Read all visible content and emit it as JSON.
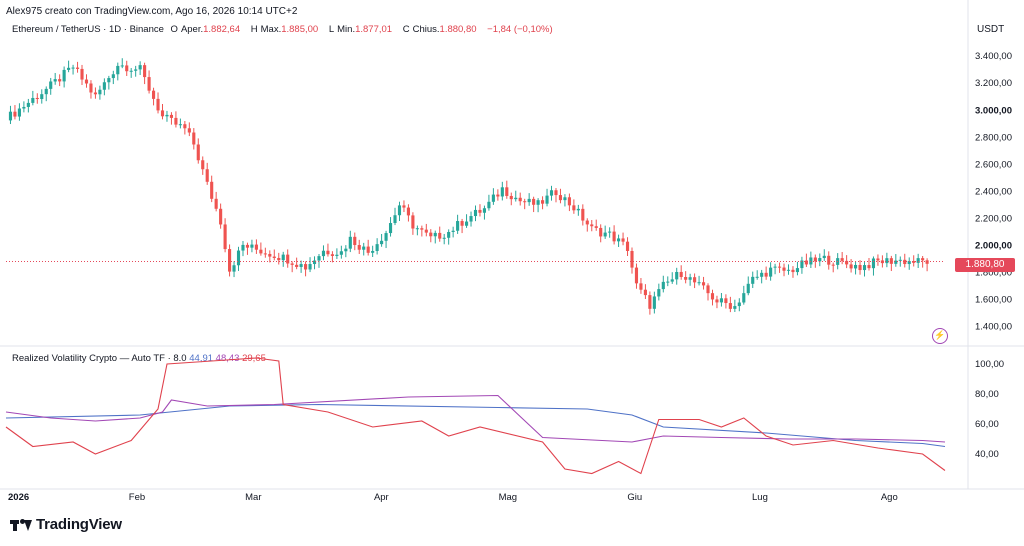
{
  "header": {
    "text": "Alex975 creato con TradingView.com, Ago 16, 2026 10:14 UTC+2"
  },
  "legend": {
    "symbol": "Ethereum / TetherUS · 1D · Binance",
    "open_label": "O",
    "open_prefix": "Aper.",
    "open": "1.882,64",
    "high_label": "H",
    "high_prefix": "Max.",
    "high": "1.885,00",
    "low_label": "L",
    "low_prefix": "Min.",
    "low": "1.877,01",
    "close_label": "C",
    "close_prefix": "Chius.",
    "close": "1.880,80",
    "change": "−1,84 (−0,10%)"
  },
  "indicator_legend": {
    "name": "Realized Volatility Crypto — Auto TF · 8.0",
    "v1": "44,91",
    "v2": "48,43",
    "v3": "29,65"
  },
  "unit": "USDT",
  "current_price": "1.880,80",
  "brand": {
    "name": "TradingView"
  },
  "colors": {
    "up": "#26a69a",
    "down": "#ef5350",
    "vol_blue": "#4f72c7",
    "vol_purple": "#a248b5",
    "vol_red": "#e0424d",
    "price_line": "#e5485a"
  },
  "chart_data": [
    {
      "type": "candlestick",
      "title": "Ethereum / TetherUS · 1D · Binance",
      "x_labels": [
        "2026",
        "Feb",
        "Mar",
        "Apr",
        "Mag",
        "Giu",
        "Lug",
        "Ago"
      ],
      "y_ticks": [
        1400,
        1600,
        1800,
        2000,
        2200,
        2400,
        2600,
        2800,
        3000,
        3200,
        3400
      ],
      "y_tick_labels": [
        "1.400,00",
        "1.600,00",
        "1.800,00",
        "2.000,00",
        "2.200,00",
        "2.400,00",
        "2.600,00",
        "2.800,00",
        "3.000,00",
        "3.200,00",
        "3.400,00"
      ],
      "ylim": [
        1300,
        3520
      ],
      "close_path": [
        [
          1,
          2960
        ],
        [
          10,
          3180
        ],
        [
          15,
          3320
        ],
        [
          20,
          3100
        ],
        [
          25,
          3340
        ],
        [
          30,
          3300
        ],
        [
          35,
          2950
        ],
        [
          40,
          2860
        ],
        [
          42,
          2750
        ],
        [
          45,
          2450
        ],
        [
          48,
          2180
        ],
        [
          50,
          1820
        ],
        [
          53,
          2000
        ],
        [
          58,
          1950
        ],
        [
          63,
          1900
        ],
        [
          67,
          1840
        ],
        [
          71,
          1960
        ],
        [
          75,
          1950
        ],
        [
          77,
          2050
        ],
        [
          81,
          1950
        ],
        [
          85,
          2100
        ],
        [
          88,
          2300
        ],
        [
          91,
          2150
        ],
        [
          95,
          2050
        ],
        [
          99,
          2100
        ],
        [
          103,
          2200
        ],
        [
          107,
          2270
        ],
        [
          111,
          2420
        ],
        [
          115,
          2330
        ],
        [
          119,
          2300
        ],
        [
          123,
          2400
        ],
        [
          127,
          2280
        ],
        [
          131,
          2120
        ],
        [
          135,
          2080
        ],
        [
          139,
          1980
        ],
        [
          141,
          1700
        ],
        [
          144,
          1560
        ],
        [
          147,
          1700
        ],
        [
          151,
          1800
        ],
        [
          155,
          1700
        ],
        [
          159,
          1590
        ],
        [
          163,
          1550
        ],
        [
          167,
          1750
        ],
        [
          171,
          1820
        ],
        [
          175,
          1810
        ],
        [
          179,
          1870
        ],
        [
          183,
          1900
        ],
        [
          187,
          1870
        ],
        [
          191,
          1840
        ],
        [
          195,
          1880
        ],
        [
          199,
          1890
        ],
        [
          203,
          1880
        ]
      ]
    },
    {
      "type": "line",
      "title": "Realized Volatility Crypto — Auto TF · 8.0",
      "y_ticks": [
        40,
        60,
        80,
        100
      ],
      "y_tick_labels": [
        "40,00",
        "60,00",
        "80,00",
        "100,00"
      ],
      "ylim": [
        20,
        108
      ],
      "series": [
        {
          "color_key": "vol_blue",
          "values": [
            [
              0,
              64
            ],
            [
              30,
              66
            ],
            [
              50,
              72
            ],
            [
              70,
              73
            ],
            [
              110,
              71
            ],
            [
              130,
              70
            ],
            [
              140,
              66
            ],
            [
              147,
              58
            ],
            [
              170,
              54
            ],
            [
              190,
              49
            ],
            [
              205,
              47
            ],
            [
              210,
              45
            ]
          ]
        },
        {
          "color_key": "vol_purple",
          "values": [
            [
              0,
              68
            ],
            [
              10,
              64
            ],
            [
              20,
              62
            ],
            [
              30,
              64
            ],
            [
              35,
              68
            ],
            [
              37,
              76
            ],
            [
              45,
              72
            ],
            [
              60,
              73
            ],
            [
              90,
              78
            ],
            [
              110,
              79
            ],
            [
              115,
              65
            ],
            [
              120,
              51
            ],
            [
              140,
              48
            ],
            [
              147,
              52
            ],
            [
              160,
              51
            ],
            [
              175,
              50
            ],
            [
              190,
              50
            ],
            [
              205,
              49
            ],
            [
              210,
              48
            ]
          ]
        },
        {
          "color_key": "vol_red",
          "values": [
            [
              0,
              58
            ],
            [
              6,
              45
            ],
            [
              15,
              48
            ],
            [
              20,
              40
            ],
            [
              28,
              49
            ],
            [
              34,
              70
            ],
            [
              36,
              100
            ],
            [
              46,
              102
            ],
            [
              56,
              104
            ],
            [
              61,
              102
            ],
            [
              62,
              73
            ],
            [
              72,
              68
            ],
            [
              82,
              58
            ],
            [
              93,
              62
            ],
            [
              99,
              52
            ],
            [
              106,
              58
            ],
            [
              120,
              48
            ],
            [
              125,
              30
            ],
            [
              131,
              27
            ],
            [
              137,
              35
            ],
            [
              142,
              27
            ],
            [
              146,
              63
            ],
            [
              155,
              63
            ],
            [
              160,
              58
            ],
            [
              165,
              64
            ],
            [
              170,
              52
            ],
            [
              176,
              46
            ],
            [
              185,
              49
            ],
            [
              195,
              44
            ],
            [
              205,
              40
            ],
            [
              210,
              29
            ]
          ]
        }
      ]
    }
  ]
}
